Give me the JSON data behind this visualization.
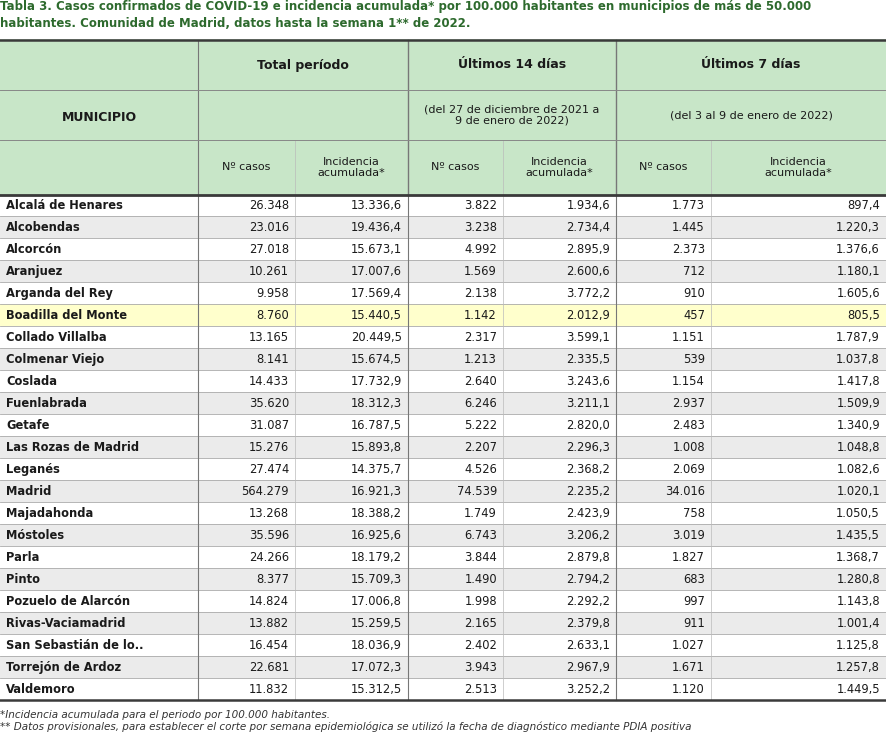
{
  "title_line1": "Tabla 3. Casos confirmados de COVID-19 e incidencia acumulada* por 100.000 habitantes en municipios de más de 50.000",
  "title_line2": "habitantes. Comunidad de Madrid, datos hasta la semana 1** de 2022.",
  "header_bg": "#c8e6c8",
  "alt_row_bg": "#ebebeb",
  "white_row_bg": "#ffffff",
  "highlight_bg": "#ffffcc",
  "highlight_row": "Boadilla del Monte",
  "title_color": "#2d6a2d",
  "footnote1": "*Incidencia acumulada para el periodo por 100.000 habitantes.",
  "footnote2": "** Datos provisionales, para establecer el corte por semana epidemiológica se utilizó la fecha de diagnóstico mediante PDIA positiva",
  "rows": [
    [
      "Alcalá de Henares",
      "26.348",
      "13.336,6",
      "3.822",
      "1.934,6",
      "1.773",
      "897,4"
    ],
    [
      "Alcobendas",
      "23.016",
      "19.436,4",
      "3.238",
      "2.734,4",
      "1.445",
      "1.220,3"
    ],
    [
      "Alcorcón",
      "27.018",
      "15.673,1",
      "4.992",
      "2.895,9",
      "2.373",
      "1.376,6"
    ],
    [
      "Aranjuez",
      "10.261",
      "17.007,6",
      "1.569",
      "2.600,6",
      "712",
      "1.180,1"
    ],
    [
      "Arganda del Rey",
      "9.958",
      "17.569,4",
      "2.138",
      "3.772,2",
      "910",
      "1.605,6"
    ],
    [
      "Boadilla del Monte",
      "8.760",
      "15.440,5",
      "1.142",
      "2.012,9",
      "457",
      "805,5"
    ],
    [
      "Collado Villalba",
      "13.165",
      "20.449,5",
      "2.317",
      "3.599,1",
      "1.151",
      "1.787,9"
    ],
    [
      "Colmenar Viejo",
      "8.141",
      "15.674,5",
      "1.213",
      "2.335,5",
      "539",
      "1.037,8"
    ],
    [
      "Coslada",
      "14.433",
      "17.732,9",
      "2.640",
      "3.243,6",
      "1.154",
      "1.417,8"
    ],
    [
      "Fuenlabrada",
      "35.620",
      "18.312,3",
      "6.246",
      "3.211,1",
      "2.937",
      "1.509,9"
    ],
    [
      "Getafe",
      "31.087",
      "16.787,5",
      "5.222",
      "2.820,0",
      "2.483",
      "1.340,9"
    ],
    [
      "Las Rozas de Madrid",
      "15.276",
      "15.893,8",
      "2.207",
      "2.296,3",
      "1.008",
      "1.048,8"
    ],
    [
      "Leganés",
      "27.474",
      "14.375,7",
      "4.526",
      "2.368,2",
      "2.069",
      "1.082,6"
    ],
    [
      "Madrid",
      "564.279",
      "16.921,3",
      "74.539",
      "2.235,2",
      "34.016",
      "1.020,1"
    ],
    [
      "Majadahonda",
      "13.268",
      "18.388,2",
      "1.749",
      "2.423,9",
      "758",
      "1.050,5"
    ],
    [
      "Móstoles",
      "35.596",
      "16.925,6",
      "6.743",
      "3.206,2",
      "3.019",
      "1.435,5"
    ],
    [
      "Parla",
      "24.266",
      "18.179,2",
      "3.844",
      "2.879,8",
      "1.827",
      "1.368,7"
    ],
    [
      "Pinto",
      "8.377",
      "15.709,3",
      "1.490",
      "2.794,2",
      "683",
      "1.280,8"
    ],
    [
      "Pozuelo de Alarcón",
      "14.824",
      "17.006,8",
      "1.998",
      "2.292,2",
      "997",
      "1.143,8"
    ],
    [
      "Rivas-Vaciamadrid",
      "13.882",
      "15.259,5",
      "2.165",
      "2.379,8",
      "911",
      "1.001,4"
    ],
    [
      "San Sebastián de lo..",
      "16.454",
      "18.036,9",
      "2.402",
      "2.633,1",
      "1.027",
      "1.125,8"
    ],
    [
      "Torrejón de Ardoz",
      "22.681",
      "17.072,3",
      "3.943",
      "2.967,9",
      "1.671",
      "1.257,8"
    ],
    [
      "Valdemoro",
      "11.832",
      "15.312,5",
      "2.513",
      "3.252,2",
      "1.120",
      "1.449,5"
    ]
  ]
}
